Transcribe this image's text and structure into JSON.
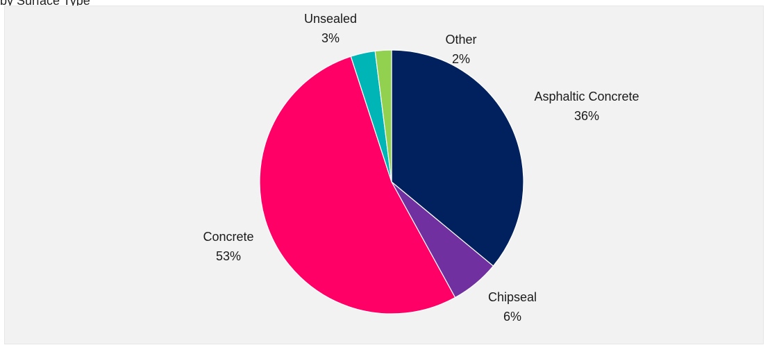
{
  "chart_data": {
    "type": "pie",
    "title": "",
    "start_angle_deg": 0,
    "direction": "clockwise",
    "slices": [
      {
        "name": "Asphaltic Concrete",
        "value": 36,
        "label": "36%",
        "color": "#00215d"
      },
      {
        "name": "Chipseal",
        "value": 6,
        "label": "6%",
        "color": "#7030a0"
      },
      {
        "name": "Concrete",
        "value": 53,
        "label": "53%",
        "color": "#ff0066"
      },
      {
        "name": "Unsealed",
        "value": 3,
        "label": "3%",
        "color": "#00b5b5"
      },
      {
        "name": "Other",
        "value": 2,
        "label": "2%",
        "color": "#92d050"
      }
    ]
  }
}
